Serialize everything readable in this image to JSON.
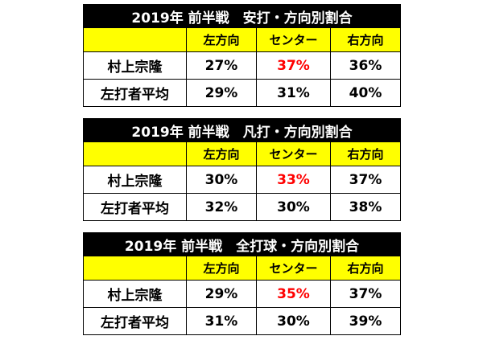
{
  "tables": [
    {
      "title": "2019年 前半戦　安打・方向別割合",
      "header": [
        "左方向",
        "センター",
        "右方向"
      ],
      "rows": [
        [
          "村上宗隆",
          "27%",
          "37%",
          "36%"
        ],
        [
          "左打者平均",
          "29%",
          "31%",
          "40%"
        ]
      ],
      "highlight_cell": [
        0,
        2
      ],
      "highlight_color": "#ff0000"
    },
    {
      "title": "2019年 前半戦　凡打・方向別割合",
      "header": [
        "左方向",
        "センター",
        "右方向"
      ],
      "rows": [
        [
          "村上宗隆",
          "30%",
          "33%",
          "37%"
        ],
        [
          "左打者平均",
          "32%",
          "30%",
          "38%"
        ]
      ],
      "highlight_cell": [
        0,
        2
      ],
      "highlight_color": "#ff0000"
    },
    {
      "title": "2019年 前半戦　全打球・方向別割合",
      "header": [
        "左方向",
        "センター",
        "右方向"
      ],
      "rows": [
        [
          "村上宗隆",
          "29%",
          "35%",
          "37%"
        ],
        [
          "左打者平均",
          "31%",
          "30%",
          "39%"
        ]
      ],
      "highlight_cell": [
        0,
        2
      ],
      "highlight_color": "#ff0000"
    }
  ]
}
